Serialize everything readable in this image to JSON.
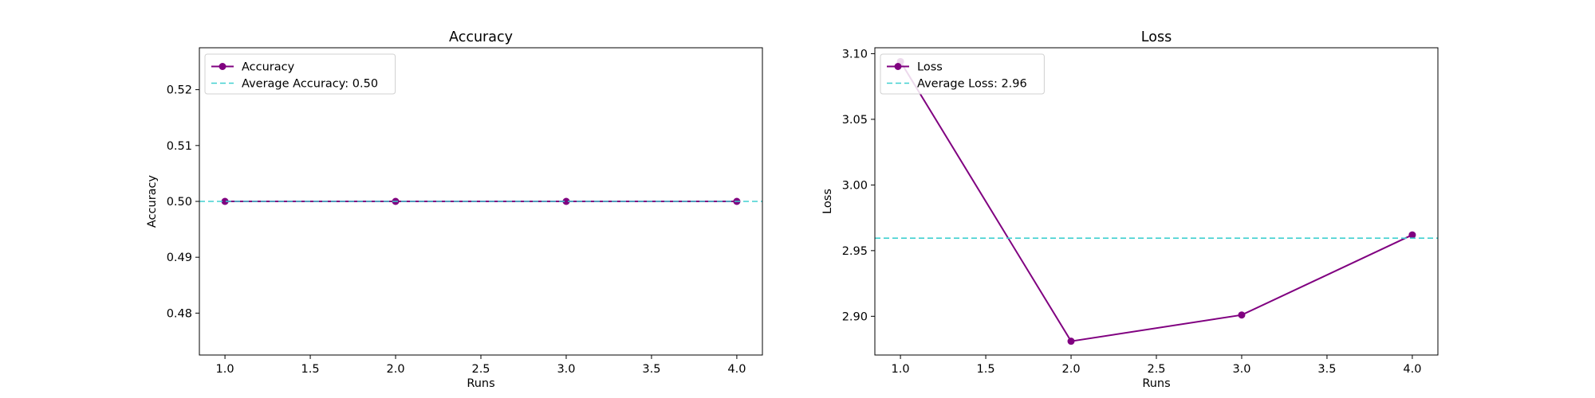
{
  "chart_data": [
    {
      "type": "line",
      "title": "Accuracy",
      "xlabel": "Runs",
      "ylabel": "Accuracy",
      "x": [
        1,
        2,
        3,
        4
      ],
      "xlim": [
        0.85,
        4.15
      ],
      "ylim": [
        0.4725,
        0.5275
      ],
      "xticks": [
        1.0,
        1.5,
        2.0,
        2.5,
        3.0,
        3.5,
        4.0
      ],
      "xtick_labels": [
        "1.0",
        "1.5",
        "2.0",
        "2.5",
        "3.0",
        "3.5",
        "4.0"
      ],
      "yticks": [
        0.48,
        0.49,
        0.5,
        0.51,
        0.52
      ],
      "ytick_labels": [
        "0.48",
        "0.49",
        "0.50",
        "0.51",
        "0.52"
      ],
      "grid": false,
      "legend_position": "upper-left",
      "series": [
        {
          "name": "Accuracy",
          "values": [
            0.5,
            0.5,
            0.5,
            0.5
          ],
          "color": "#800080",
          "marker": "circle",
          "style": "solid"
        }
      ],
      "reference_lines": [
        {
          "name": "Average Accuracy: 0.50",
          "value": 0.5,
          "color": "#40d0d0",
          "style": "dashed"
        }
      ]
    },
    {
      "type": "line",
      "title": "Loss",
      "xlabel": "Runs",
      "ylabel": "Loss",
      "x": [
        1,
        2,
        3,
        4
      ],
      "xlim": [
        0.85,
        4.15
      ],
      "ylim": [
        2.8705,
        3.1045
      ],
      "xticks": [
        1.0,
        1.5,
        2.0,
        2.5,
        3.0,
        3.5,
        4.0
      ],
      "xtick_labels": [
        "1.0",
        "1.5",
        "2.0",
        "2.5",
        "3.0",
        "3.5",
        "4.0"
      ],
      "yticks": [
        2.9,
        2.95,
        3.0,
        3.05,
        3.1
      ],
      "ytick_labels": [
        "2.90",
        "2.95",
        "3.00",
        "3.05",
        "3.10"
      ],
      "grid": false,
      "legend_position": "upper-left",
      "series": [
        {
          "name": "Loss",
          "values": [
            3.094,
            2.881,
            2.901,
            2.962
          ],
          "color": "#800080",
          "marker": "circle",
          "style": "solid"
        }
      ],
      "reference_lines": [
        {
          "name": "Average Loss: 2.96",
          "value": 2.9595,
          "color": "#40d0d0",
          "style": "dashed"
        }
      ]
    }
  ]
}
